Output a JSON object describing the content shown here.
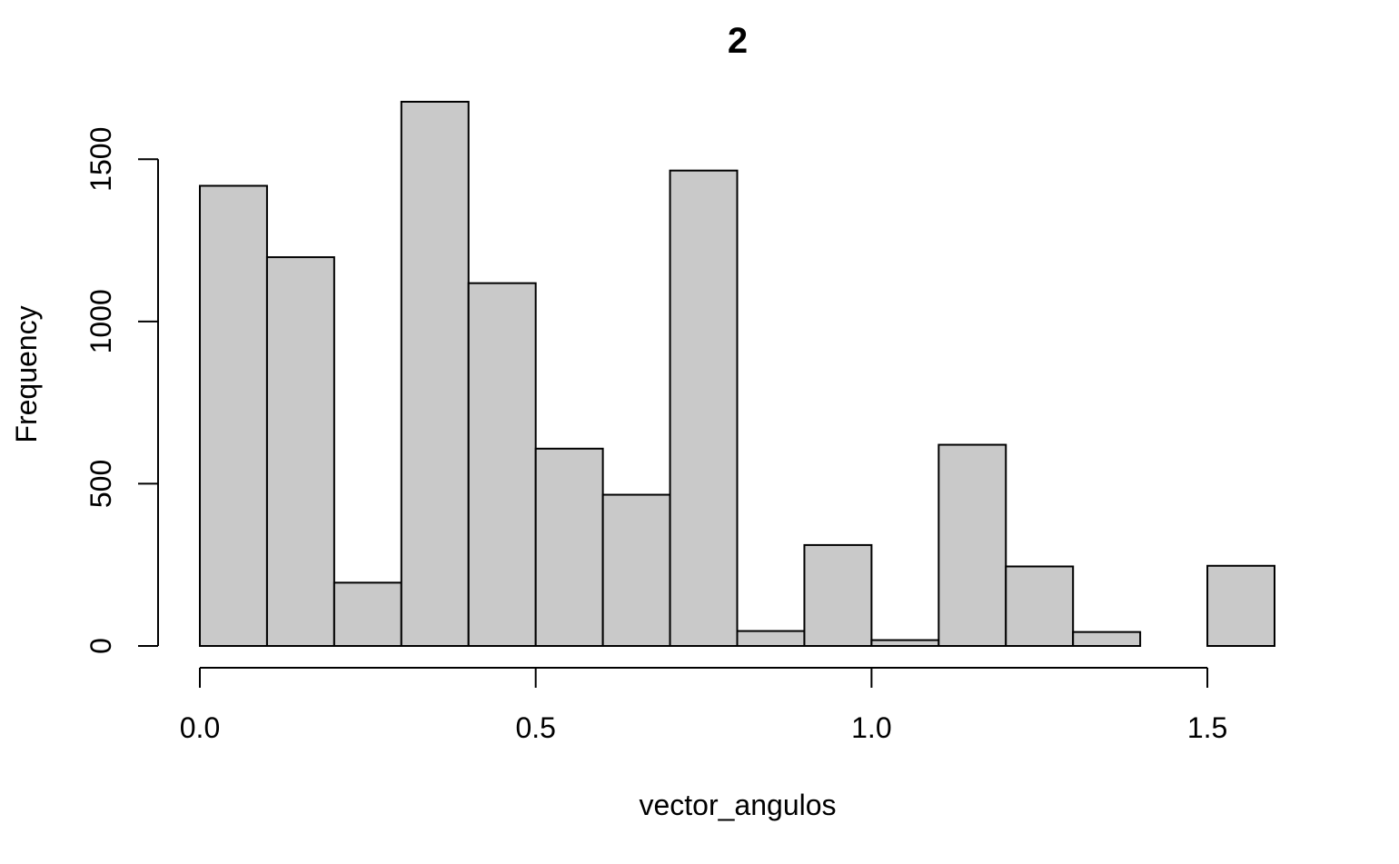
{
  "chart_data": {
    "type": "bar",
    "title": "2",
    "xlabel": "vector_angulos",
    "ylabel": "Frequency",
    "bin_edges": [
      0.0,
      0.1,
      0.2,
      0.3,
      0.4,
      0.5,
      0.6,
      0.7,
      0.8,
      0.9,
      1.0,
      1.1,
      1.2,
      1.3,
      1.4,
      1.5,
      1.6
    ],
    "values": [
      1418,
      1198,
      195,
      1677,
      1118,
      608,
      466,
      1465,
      46,
      311,
      18,
      620,
      245,
      43,
      0,
      247
    ],
    "x_ticks": [
      0.0,
      0.5,
      1.0,
      1.5
    ],
    "x_tick_labels": [
      "0.0",
      "0.5",
      "1.0",
      "1.5"
    ],
    "y_ticks": [
      0,
      500,
      1000,
      1500
    ],
    "y_tick_labels": [
      "0",
      "500",
      "1000",
      "1500"
    ],
    "xlim": [
      0.0,
      1.6
    ],
    "ylim": [
      0,
      1677
    ],
    "grid": false,
    "legend": "none",
    "bar_color": "#c9c9c9",
    "edge_color": "#000000"
  }
}
